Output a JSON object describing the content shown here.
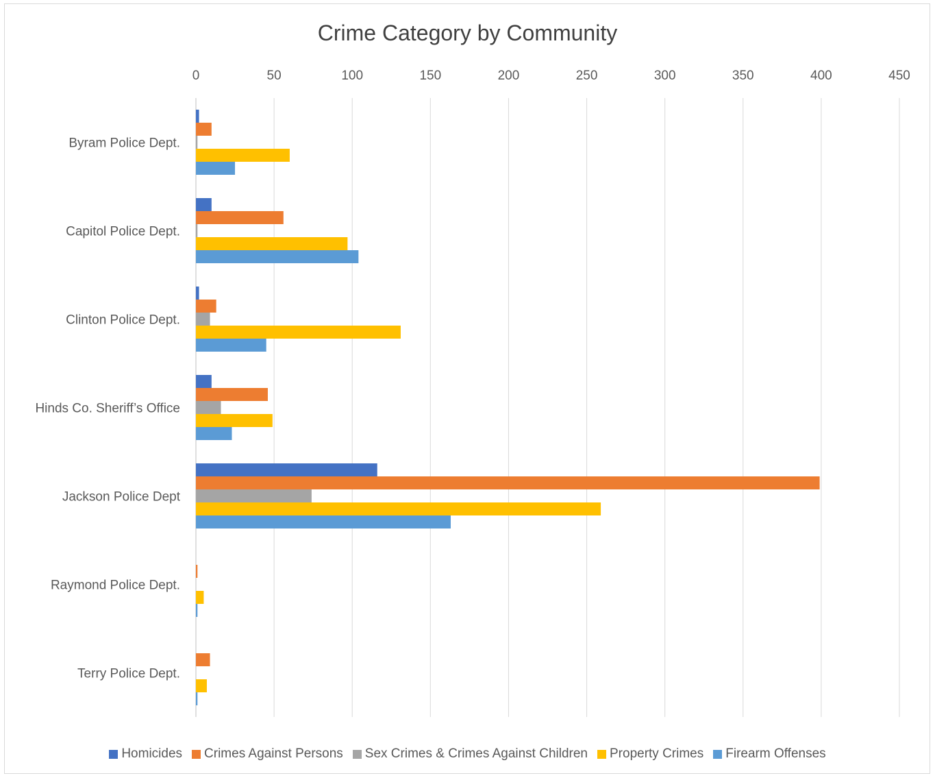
{
  "chart_data": {
    "type": "bar",
    "orientation": "horizontal",
    "title": "Crime Category by Community",
    "categories": [
      "Byram Police Dept.",
      "Capitol Police Dept.",
      "Clinton Police Dept.",
      "Hinds Co. Sheriff’s Office",
      "Jackson Police Dept",
      "Raymond Police Dept.",
      "Terry Police Dept."
    ],
    "series": [
      {
        "name": "Homicides",
        "color": "#4472C4",
        "values": [
          2,
          10,
          2,
          10,
          116,
          0,
          0
        ]
      },
      {
        "name": "Crimes Against Persons",
        "color": "#ED7D31",
        "values": [
          10,
          56,
          13,
          46,
          399,
          1,
          9
        ]
      },
      {
        "name": "Sex Crimes & Crimes Against Children",
        "color": "#A5A5A5",
        "values": [
          1,
          1,
          9,
          16,
          74,
          0,
          0
        ]
      },
      {
        "name": "Property Crimes",
        "color": "#FFC000",
        "values": [
          60,
          97,
          131,
          49,
          259,
          5,
          7
        ]
      },
      {
        "name": "Firearm Offenses",
        "color": "#5B9BD5",
        "values": [
          25,
          104,
          45,
          23,
          163,
          1,
          1
        ]
      }
    ],
    "xlim": [
      0,
      450
    ],
    "xticks": [
      0,
      50,
      100,
      150,
      200,
      250,
      300,
      350,
      400,
      450
    ],
    "x_axis_position": "top",
    "grid": "vertical",
    "legend": "bottom"
  }
}
